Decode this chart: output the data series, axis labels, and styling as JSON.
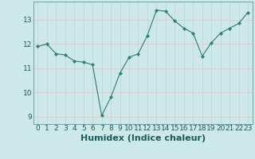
{
  "x": [
    0,
    1,
    2,
    3,
    4,
    5,
    6,
    7,
    8,
    9,
    10,
    11,
    12,
    13,
    14,
    15,
    16,
    17,
    18,
    19,
    20,
    21,
    22,
    23
  ],
  "y": [
    11.9,
    12.0,
    11.6,
    11.55,
    11.3,
    11.25,
    11.15,
    9.05,
    9.8,
    10.8,
    11.45,
    11.6,
    12.35,
    13.4,
    13.35,
    12.95,
    12.65,
    12.45,
    11.5,
    12.05,
    12.45,
    12.65,
    12.85,
    13.3
  ],
  "line_color": "#2e7d6e",
  "marker": "D",
  "marker_size": 2.2,
  "bg_color": "#cce8e8",
  "grid_color": "#f0c0c0",
  "grid_vcolor": "#c0d8d8",
  "xlabel": "Humidex (Indice chaleur)",
  "ylim": [
    8.7,
    13.75
  ],
  "xlim": [
    -0.5,
    23.5
  ],
  "yticks": [
    9,
    10,
    11,
    12,
    13
  ],
  "xticks": [
    0,
    1,
    2,
    3,
    4,
    5,
    6,
    7,
    8,
    9,
    10,
    11,
    12,
    13,
    14,
    15,
    16,
    17,
    18,
    19,
    20,
    21,
    22,
    23
  ],
  "tick_fontsize": 6.5,
  "xlabel_fontsize": 8,
  "label_color": "#1a5c5c"
}
